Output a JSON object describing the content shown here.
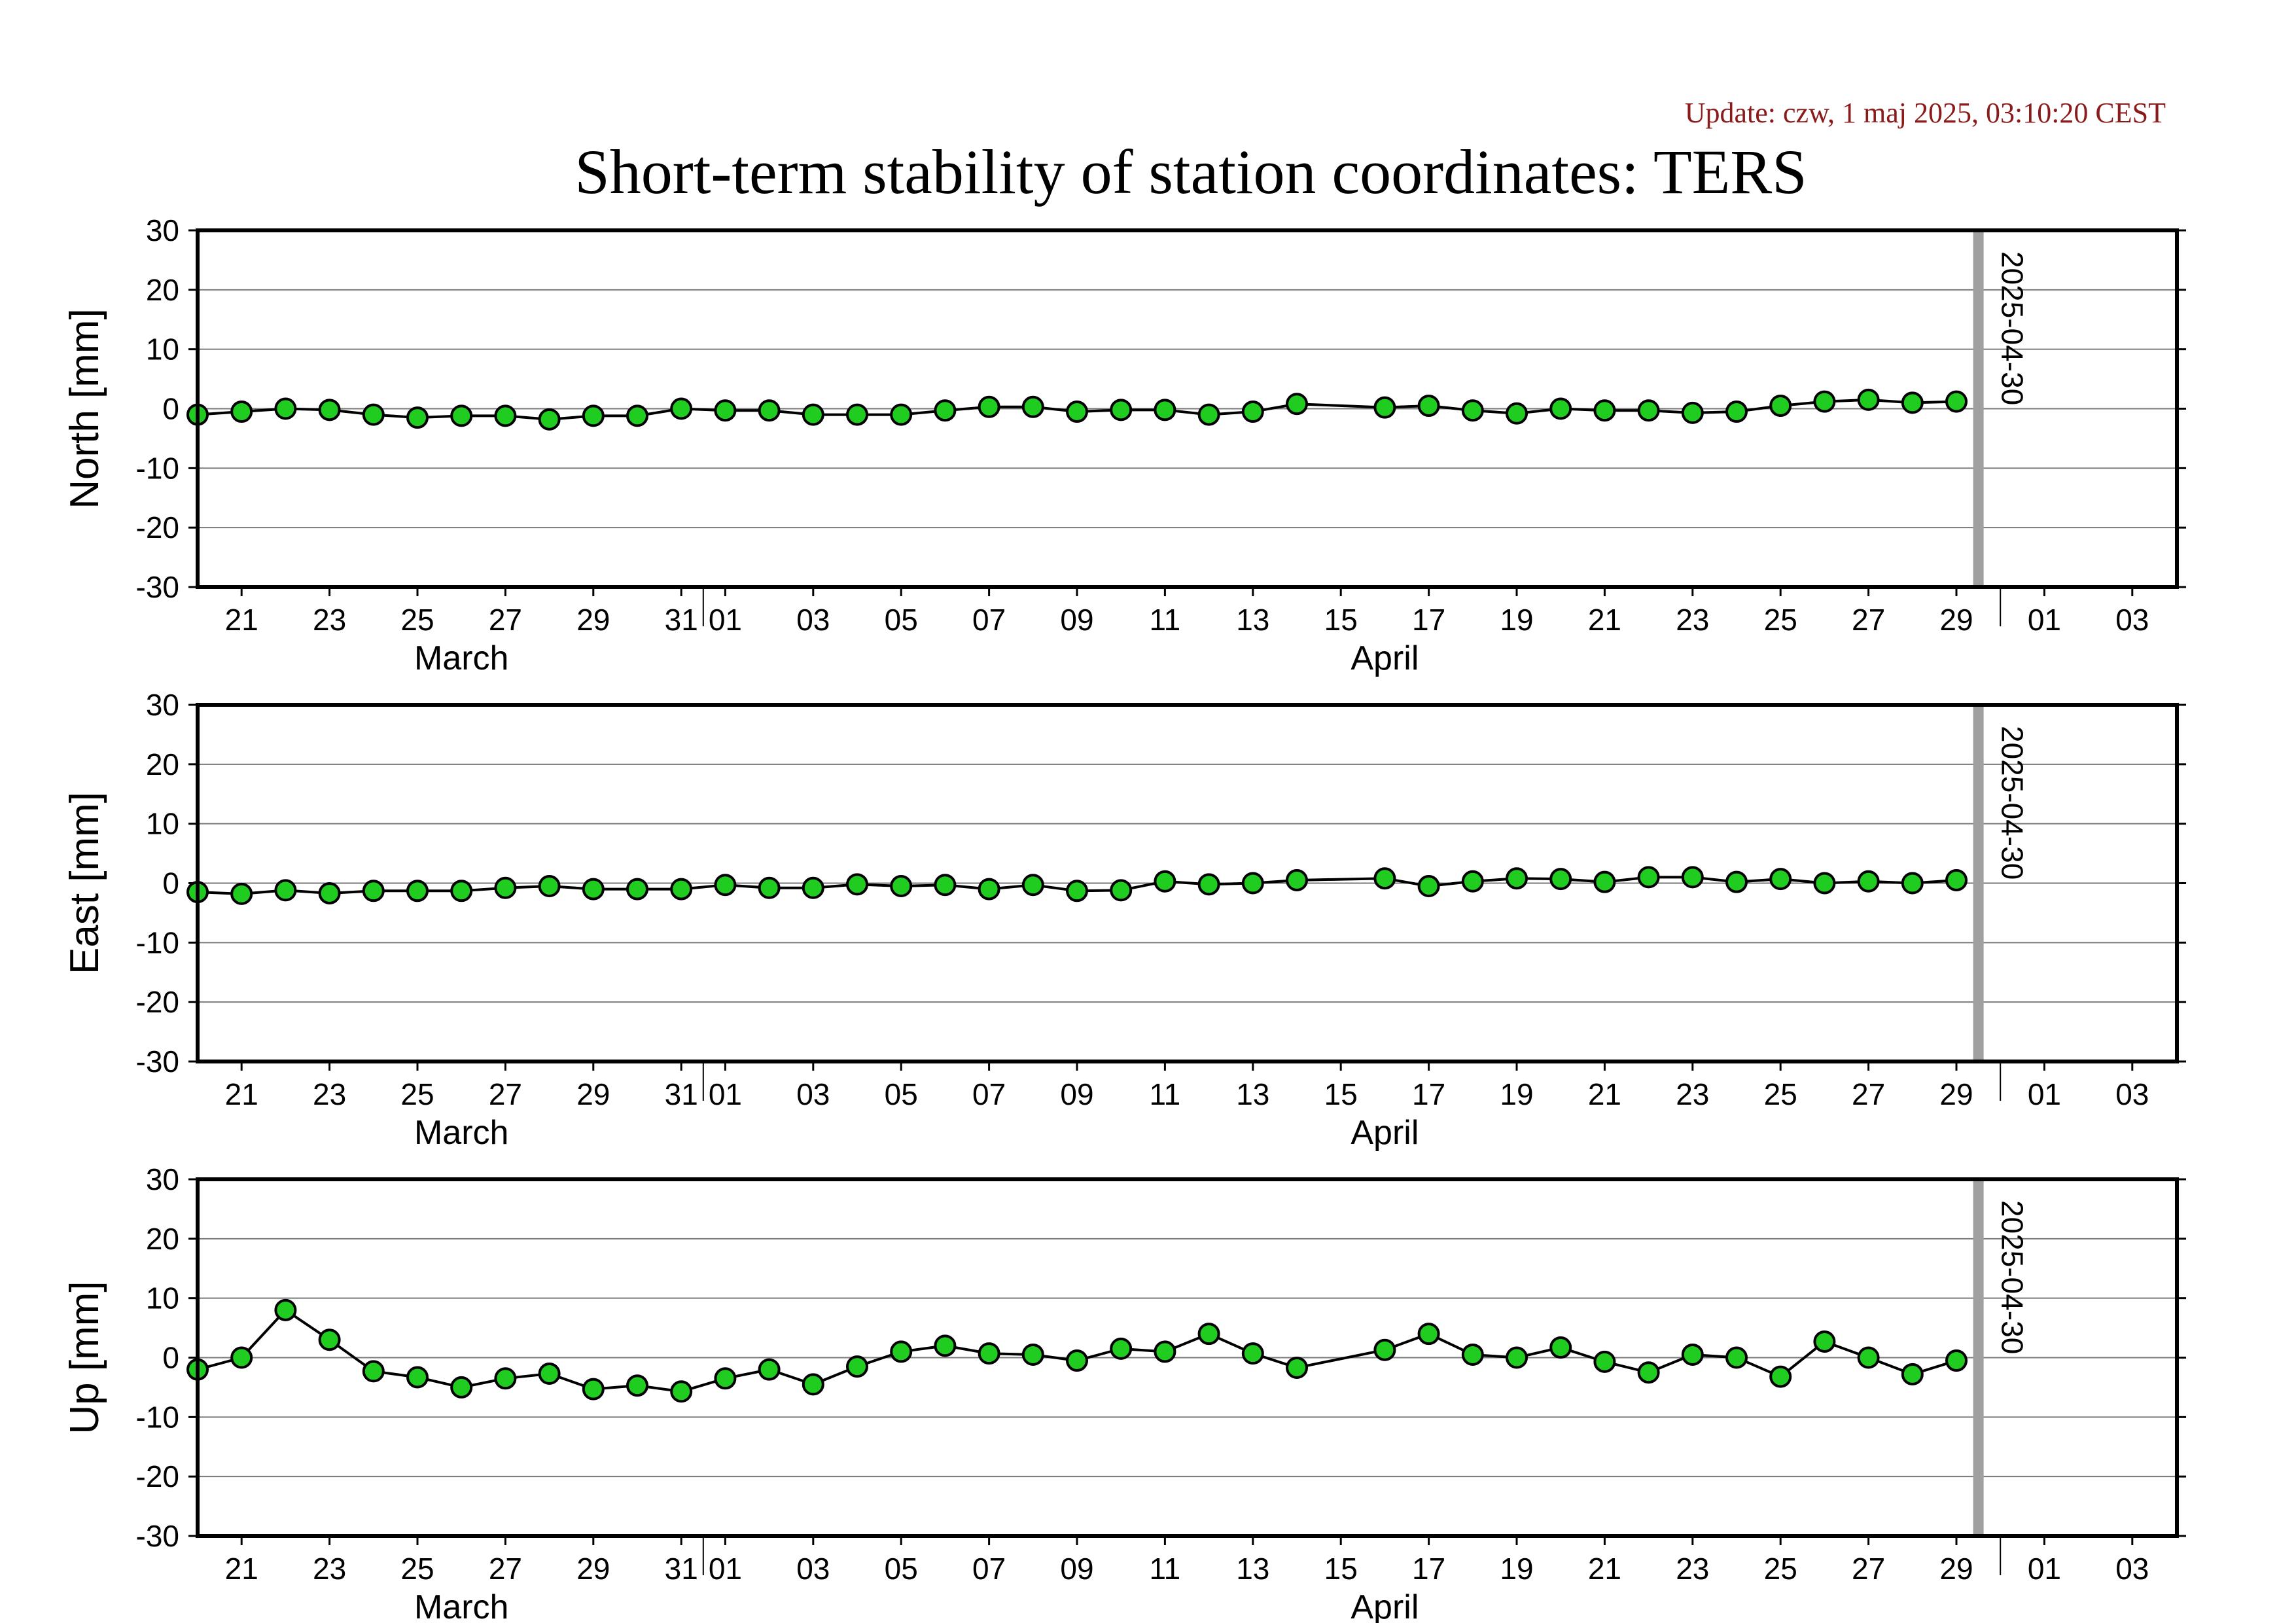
{
  "header": {
    "update": "Update: czw, 1 maj 2025, 03:10:20 CEST",
    "title": "Short-term stability of station coordinates: TERS"
  },
  "colors": {
    "point_fill": "#1fcc1f",
    "marker_line": "#a0a0a0",
    "update_text": "#8b1a1a"
  },
  "chart_data": [
    {
      "type": "line",
      "ylabel": "North [mm]",
      "ylim": [
        -30,
        30
      ],
      "yticks": [
        30,
        20,
        10,
        0,
        -10,
        -20,
        -30
      ],
      "grid": true,
      "x_start": "2025-03-20",
      "xlim": [
        "2025-03-20",
        "2025-05-04"
      ],
      "x_tick_labels": [
        "21",
        "23",
        "25",
        "27",
        "29",
        "31",
        "01",
        "03",
        "05",
        "07",
        "09",
        "11",
        "13",
        "15",
        "17",
        "19",
        "21",
        "23",
        "25",
        "27",
        "29",
        "01",
        "03"
      ],
      "month_labels": [
        "March",
        "April"
      ],
      "vertical_marker": "2025-04-30",
      "series": [
        {
          "x": [
            "2025-03-20",
            "2025-03-21",
            "2025-03-22",
            "2025-03-23",
            "2025-03-24",
            "2025-03-25",
            "2025-03-26",
            "2025-03-27",
            "2025-03-28",
            "2025-03-29",
            "2025-03-30",
            "2025-03-31",
            "2025-04-01",
            "2025-04-02",
            "2025-04-03",
            "2025-04-04",
            "2025-04-05",
            "2025-04-06",
            "2025-04-07",
            "2025-04-08",
            "2025-04-09",
            "2025-04-10",
            "2025-04-11",
            "2025-04-12",
            "2025-04-13",
            "2025-04-14",
            "2025-04-16",
            "2025-04-17",
            "2025-04-18",
            "2025-04-19",
            "2025-04-20",
            "2025-04-21",
            "2025-04-22",
            "2025-04-23",
            "2025-04-24",
            "2025-04-25",
            "2025-04-26",
            "2025-04-27",
            "2025-04-28",
            "2025-04-29"
          ],
          "values": [
            -1.0,
            -0.5,
            0.0,
            -0.2,
            -1.0,
            -1.5,
            -1.2,
            -1.2,
            -1.8,
            -1.2,
            -1.2,
            0.0,
            -0.3,
            -0.3,
            -1.0,
            -1.0,
            -1.0,
            -0.3,
            0.3,
            0.3,
            -0.5,
            -0.2,
            -0.2,
            -1.0,
            -0.5,
            0.8,
            0.2,
            0.5,
            -0.3,
            -0.8,
            0.0,
            -0.3,
            -0.3,
            -0.7,
            -0.5,
            0.5,
            1.2,
            1.5,
            1.0,
            1.2
          ]
        }
      ]
    },
    {
      "type": "line",
      "ylabel": "East [mm]",
      "ylim": [
        -30,
        30
      ],
      "yticks": [
        30,
        20,
        10,
        0,
        -10,
        -20,
        -30
      ],
      "grid": true,
      "x_start": "2025-03-20",
      "xlim": [
        "2025-03-20",
        "2025-05-04"
      ],
      "x_tick_labels": [
        "21",
        "23",
        "25",
        "27",
        "29",
        "31",
        "01",
        "03",
        "05",
        "07",
        "09",
        "11",
        "13",
        "15",
        "17",
        "19",
        "21",
        "23",
        "25",
        "27",
        "29",
        "01",
        "03"
      ],
      "month_labels": [
        "March",
        "April"
      ],
      "vertical_marker": "2025-04-30",
      "series": [
        {
          "x": [
            "2025-03-20",
            "2025-03-21",
            "2025-03-22",
            "2025-03-23",
            "2025-03-24",
            "2025-03-25",
            "2025-03-26",
            "2025-03-27",
            "2025-03-28",
            "2025-03-29",
            "2025-03-30",
            "2025-03-31",
            "2025-04-01",
            "2025-04-02",
            "2025-04-03",
            "2025-04-04",
            "2025-04-05",
            "2025-04-06",
            "2025-04-07",
            "2025-04-08",
            "2025-04-09",
            "2025-04-10",
            "2025-04-11",
            "2025-04-12",
            "2025-04-13",
            "2025-04-14",
            "2025-04-16",
            "2025-04-17",
            "2025-04-18",
            "2025-04-19",
            "2025-04-20",
            "2025-04-21",
            "2025-04-22",
            "2025-04-23",
            "2025-04-24",
            "2025-04-25",
            "2025-04-26",
            "2025-04-27",
            "2025-04-28",
            "2025-04-29"
          ],
          "values": [
            -1.5,
            -1.8,
            -1.2,
            -1.7,
            -1.3,
            -1.3,
            -1.3,
            -0.8,
            -0.5,
            -1.0,
            -1.0,
            -1.0,
            -0.3,
            -0.8,
            -0.8,
            -0.2,
            -0.5,
            -0.3,
            -1.0,
            -0.3,
            -1.3,
            -1.2,
            0.3,
            -0.2,
            0.0,
            0.5,
            0.8,
            -0.5,
            0.3,
            0.8,
            0.7,
            0.2,
            1.0,
            1.0,
            0.2,
            0.7,
            0.0,
            0.3,
            0.0,
            0.5
          ]
        }
      ]
    },
    {
      "type": "line",
      "ylabel": "Up [mm]",
      "ylim": [
        -30,
        30
      ],
      "yticks": [
        30,
        20,
        10,
        0,
        -10,
        -20,
        -30
      ],
      "grid": true,
      "x_start": "2025-03-20",
      "xlim": [
        "2025-03-20",
        "2025-05-04"
      ],
      "x_tick_labels": [
        "21",
        "23",
        "25",
        "27",
        "29",
        "31",
        "01",
        "03",
        "05",
        "07",
        "09",
        "11",
        "13",
        "15",
        "17",
        "19",
        "21",
        "23",
        "25",
        "27",
        "29",
        "01",
        "03"
      ],
      "month_labels": [
        "March",
        "April"
      ],
      "vertical_marker": "2025-04-30",
      "series": [
        {
          "x": [
            "2025-03-20",
            "2025-03-21",
            "2025-03-22",
            "2025-03-23",
            "2025-03-24",
            "2025-03-25",
            "2025-03-26",
            "2025-03-27",
            "2025-03-28",
            "2025-03-29",
            "2025-03-30",
            "2025-03-31",
            "2025-04-01",
            "2025-04-02",
            "2025-04-03",
            "2025-04-04",
            "2025-04-05",
            "2025-04-06",
            "2025-04-07",
            "2025-04-08",
            "2025-04-09",
            "2025-04-10",
            "2025-04-11",
            "2025-04-12",
            "2025-04-13",
            "2025-04-14",
            "2025-04-16",
            "2025-04-17",
            "2025-04-18",
            "2025-04-19",
            "2025-04-20",
            "2025-04-21",
            "2025-04-22",
            "2025-04-23",
            "2025-04-24",
            "2025-04-25",
            "2025-04-26",
            "2025-04-27",
            "2025-04-28",
            "2025-04-29"
          ],
          "values": [
            -2.0,
            0.0,
            8.0,
            3.0,
            -2.3,
            -3.3,
            -5.0,
            -3.5,
            -2.7,
            -5.3,
            -4.7,
            -5.7,
            -3.5,
            -2.0,
            -4.5,
            -1.5,
            1.0,
            2.0,
            0.7,
            0.5,
            -0.5,
            1.5,
            1.0,
            4.0,
            0.7,
            -1.7,
            1.3,
            4.0,
            0.5,
            0.0,
            1.7,
            -0.7,
            -2.5,
            0.5,
            0.0,
            -3.2,
            2.7,
            0.0,
            -2.8,
            -0.5
          ]
        }
      ]
    }
  ]
}
